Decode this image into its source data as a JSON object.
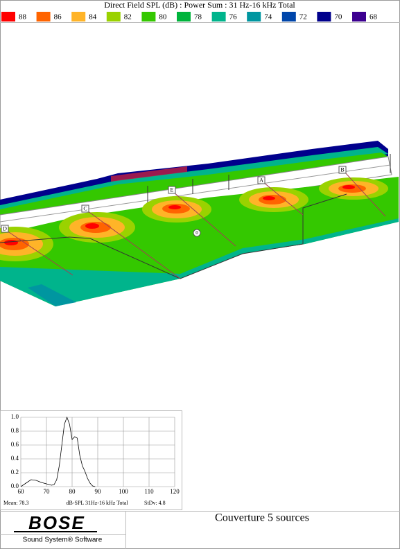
{
  "header": {
    "title": "Direct Field SPL (dB) : Power Sum : 31 Hz-16 kHz Total"
  },
  "legend": [
    {
      "value": 88,
      "color": "#ff0000"
    },
    {
      "value": 86,
      "color": "#ff6400"
    },
    {
      "value": 84,
      "color": "#ffb428"
    },
    {
      "value": 82,
      "color": "#9ad200"
    },
    {
      "value": 80,
      "color": "#34c800"
    },
    {
      "value": 78,
      "color": "#00b43c"
    },
    {
      "value": 76,
      "color": "#00b48c"
    },
    {
      "value": 74,
      "color": "#0096a0"
    },
    {
      "value": 72,
      "color": "#0046aa"
    },
    {
      "value": 70,
      "color": "#00008c"
    },
    {
      "value": 68,
      "color": "#3c0090"
    }
  ],
  "map": {
    "labels": [
      "D",
      "C",
      "E",
      "A",
      "B",
      "0"
    ]
  },
  "chart_data": {
    "type": "line",
    "color": "#000000",
    "x": [
      60,
      62,
      64,
      66,
      68,
      70,
      72,
      73,
      74,
      75,
      76,
      77,
      78,
      79,
      80,
      81,
      82,
      83,
      84,
      85,
      86,
      87,
      88,
      89
    ],
    "values": [
      0,
      0.05,
      0.1,
      0.09,
      0.06,
      0.04,
      0.02,
      0.03,
      0.1,
      0.3,
      0.6,
      0.9,
      1.0,
      0.9,
      0.68,
      0.72,
      0.7,
      0.45,
      0.3,
      0.22,
      0.12,
      0.05,
      0.01,
      0
    ],
    "xlim": [
      60,
      120
    ],
    "ylim": [
      0,
      1
    ],
    "xticks": [
      60,
      70,
      80,
      90,
      100,
      110,
      120
    ],
    "yticks": [
      {
        "value": 0,
        "label": "0.0"
      },
      {
        "value": 0.2,
        "label": "0.2"
      },
      {
        "value": 0.4,
        "label": "0.4"
      },
      {
        "value": 0.6,
        "label": "0.6"
      },
      {
        "value": 0.8,
        "label": "0.8"
      },
      {
        "value": 1,
        "label": "1.0"
      }
    ],
    "grid": true,
    "mean_label": "Mean:  78.3",
    "xlabel": "dB-SPL 31Hz-16 kHz Total",
    "stdev_label": "StDv:  4.8"
  },
  "footer": {
    "logo": "BOSE",
    "tagline": "Sound System® Software",
    "caption": "Couverture 5 sources"
  }
}
